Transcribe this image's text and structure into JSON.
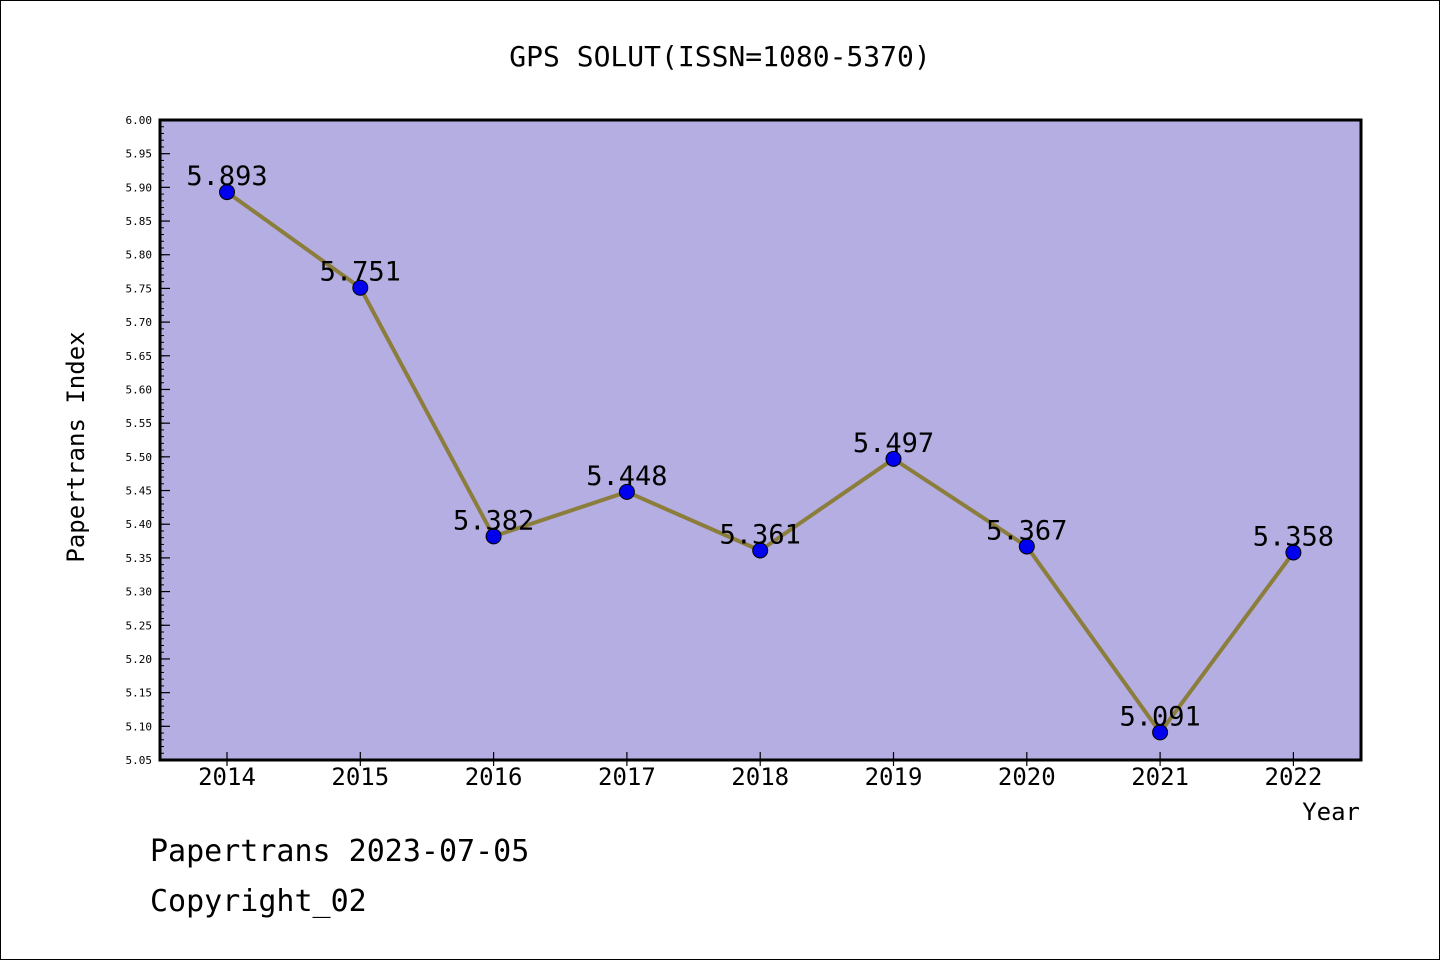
{
  "chart_data": {
    "type": "line",
    "title": "GPS SOLUT(ISSN=1080-5370)",
    "xlabel": "Year",
    "ylabel": "Papertrans Index",
    "categories": [
      "2014",
      "2015",
      "2016",
      "2017",
      "2018",
      "2019",
      "2020",
      "2021",
      "2022"
    ],
    "values": [
      5.893,
      5.751,
      5.382,
      5.448,
      5.361,
      5.497,
      5.367,
      5.091,
      5.358
    ],
    "data_labels": [
      "5.893",
      "5.751",
      "5.382",
      "5.448",
      "5.361",
      "5.497",
      "5.367",
      "5.091",
      "5.358"
    ],
    "ylim": [
      5.05,
      6.0
    ],
    "y_ticks": [
      "5.05",
      "5.10",
      "5.15",
      "5.20",
      "5.25",
      "5.30",
      "5.35",
      "5.40",
      "5.45",
      "5.50",
      "5.55",
      "5.60",
      "5.65",
      "5.70",
      "5.75",
      "5.80",
      "5.85",
      "5.90",
      "5.95",
      "6.00"
    ],
    "grid": false,
    "legend": "none",
    "colors": {
      "plot_background": "#b5aee2",
      "line": "#8b7d3c",
      "marker": "#0000ee",
      "axis": "#000000"
    }
  },
  "footer": {
    "line1": "Papertrans 2023-07-05",
    "line2": "Copyright_02"
  }
}
